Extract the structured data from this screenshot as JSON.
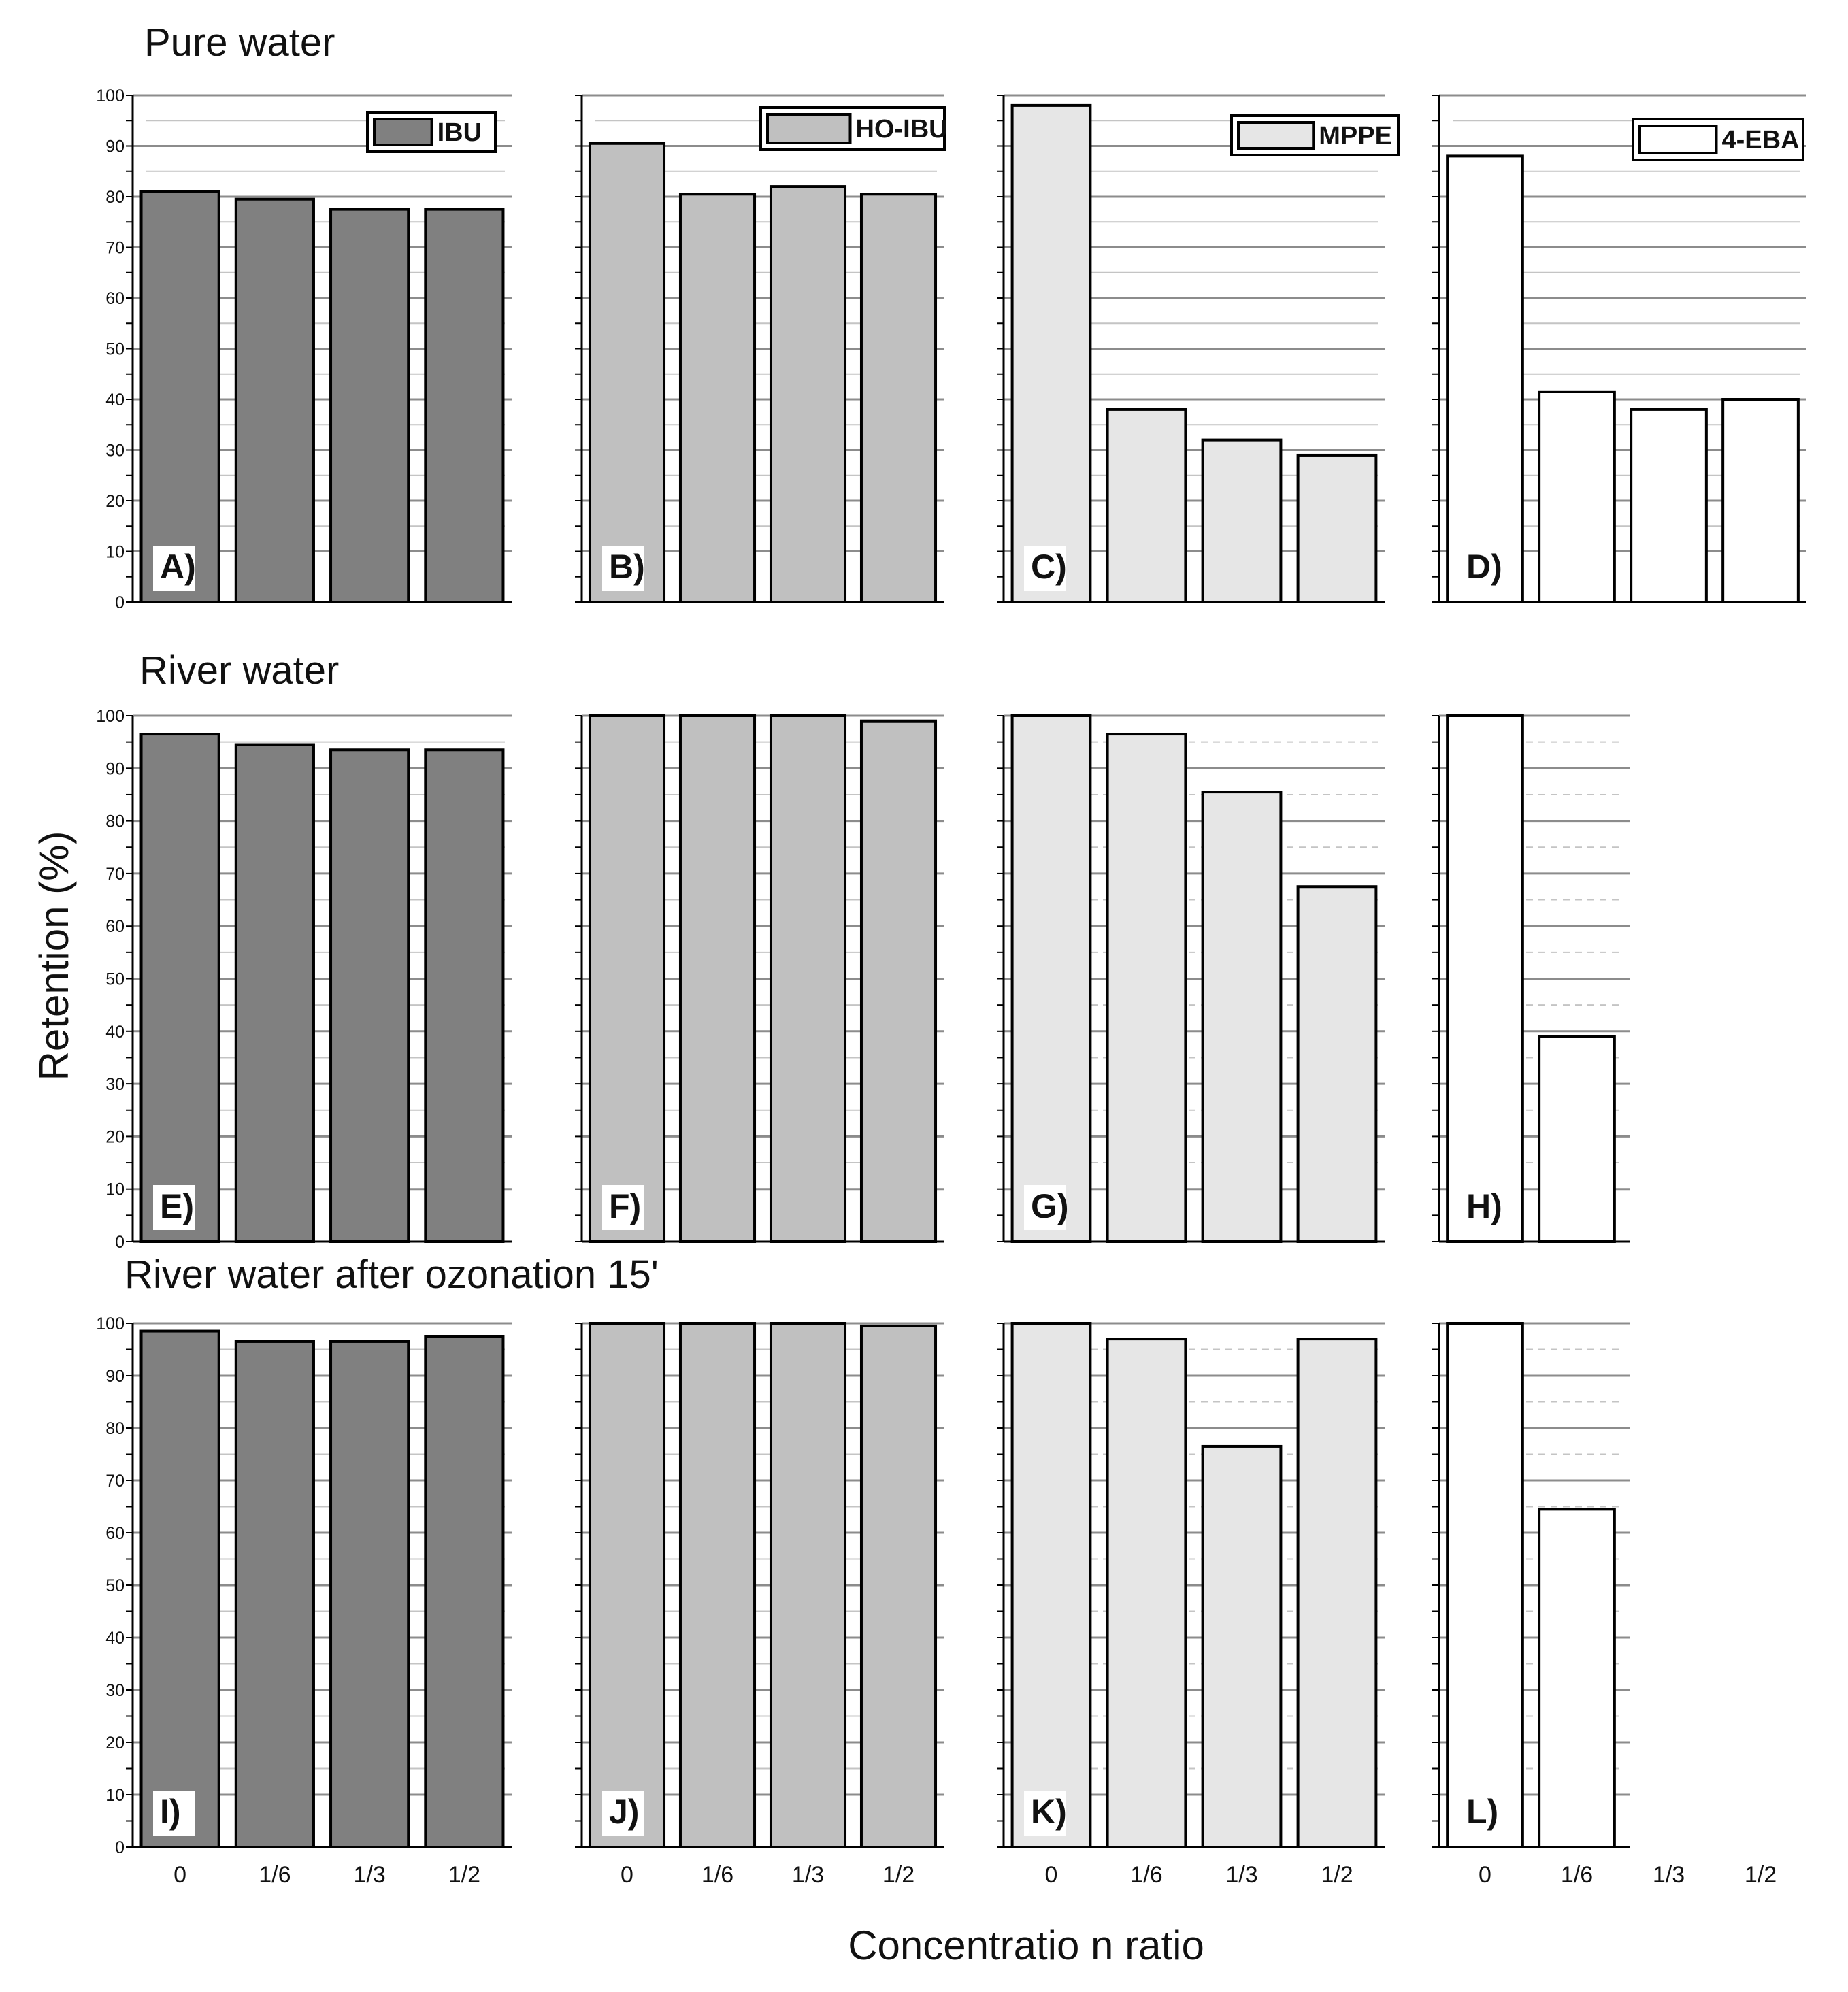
{
  "figure": {
    "y_axis_label": "Retention (%)",
    "x_axis_label": "Concentratio n ratio",
    "y_ticks": [
      "0",
      "10",
      "20",
      "30",
      "40",
      "50",
      "60",
      "70",
      "80",
      "90",
      "100"
    ],
    "categories": [
      "0",
      "1/6",
      "1/3",
      "1/2"
    ]
  },
  "rows": [
    {
      "title": "Pure water"
    },
    {
      "title": "River water"
    },
    {
      "title": "River water after ozonation 15'"
    }
  ],
  "legend": [
    {
      "name": "IBU",
      "color": "#808080"
    },
    {
      "name": "HO-IBU",
      "color": "#c0c0c0"
    },
    {
      "name": "MPPE",
      "color": "#e6e6e6"
    },
    {
      "name": "4-EBA",
      "color": "#ffffff"
    }
  ],
  "chart_data": [
    {
      "type": "bar",
      "panel": "A)",
      "series": "IBU",
      "matrix": "Pure water",
      "categories": [
        "0",
        "1/6",
        "1/3",
        "1/2"
      ],
      "values": [
        81,
        79.5,
        77.5,
        77.5
      ],
      "ylim": [
        0,
        100
      ],
      "color": "#808080"
    },
    {
      "type": "bar",
      "panel": "B)",
      "series": "HO-IBU",
      "matrix": "Pure water",
      "categories": [
        "0",
        "1/6",
        "1/3",
        "1/2"
      ],
      "values": [
        90.5,
        80.5,
        82,
        80.5
      ],
      "ylim": [
        0,
        100
      ],
      "color": "#c0c0c0"
    },
    {
      "type": "bar",
      "panel": "C)",
      "series": "MPPE",
      "matrix": "Pure water",
      "categories": [
        "0",
        "1/6",
        "1/3",
        "1/2"
      ],
      "values": [
        98,
        38,
        32,
        29
      ],
      "ylim": [
        0,
        100
      ],
      "color": "#e6e6e6"
    },
    {
      "type": "bar",
      "panel": "D)",
      "series": "4-EBA",
      "matrix": "Pure water",
      "categories": [
        "0",
        "1/6",
        "1/3",
        "1/2"
      ],
      "values": [
        88,
        41.5,
        38,
        40
      ],
      "ylim": [
        0,
        100
      ],
      "color": "#ffffff"
    },
    {
      "type": "bar",
      "panel": "E)",
      "series": "IBU",
      "matrix": "River water",
      "categories": [
        "0",
        "1/6",
        "1/3",
        "1/2"
      ],
      "values": [
        96.5,
        94.5,
        93.5,
        93.5
      ],
      "ylim": [
        0,
        100
      ],
      "color": "#808080"
    },
    {
      "type": "bar",
      "panel": "F)",
      "series": "HO-IBU",
      "matrix": "River water",
      "categories": [
        "0",
        "1/6",
        "1/3",
        "1/2"
      ],
      "values": [
        100,
        100,
        100,
        99
      ],
      "ylim": [
        0,
        100
      ],
      "color": "#c0c0c0"
    },
    {
      "type": "bar",
      "panel": "G)",
      "series": "MPPE",
      "matrix": "River water",
      "categories": [
        "0",
        "1/6",
        "1/3",
        "1/2"
      ],
      "values": [
        100,
        96.5,
        85.5,
        67.5
      ],
      "ylim": [
        0,
        100
      ],
      "color": "#e6e6e6"
    },
    {
      "type": "bar",
      "panel": "H)",
      "series": "4-EBA",
      "matrix": "River water",
      "categories": [
        "0",
        "1/6"
      ],
      "values": [
        100,
        39
      ],
      "ylim": [
        0,
        100
      ],
      "color": "#ffffff"
    },
    {
      "type": "bar",
      "panel": "I)",
      "series": "IBU",
      "matrix": "River water after ozonation 15'",
      "categories": [
        "0",
        "1/6",
        "1/3",
        "1/2"
      ],
      "values": [
        98.5,
        96.5,
        96.5,
        97.5
      ],
      "ylim": [
        0,
        100
      ],
      "color": "#808080"
    },
    {
      "type": "bar",
      "panel": "J)",
      "series": "HO-IBU",
      "matrix": "River water after ozonation 15'",
      "categories": [
        "0",
        "1/6",
        "1/3",
        "1/2"
      ],
      "values": [
        100,
        100,
        100,
        99.5
      ],
      "ylim": [
        0,
        100
      ],
      "color": "#c0c0c0"
    },
    {
      "type": "bar",
      "panel": "K)",
      "series": "MPPE",
      "matrix": "River water after ozonation 15'",
      "categories": [
        "0",
        "1/6",
        "1/3",
        "1/2"
      ],
      "values": [
        100,
        97,
        76.5,
        97
      ],
      "ylim": [
        0,
        100
      ],
      "color": "#e6e6e6"
    },
    {
      "type": "bar",
      "panel": "L)",
      "series": "4-EBA",
      "matrix": "River water after ozonation 15'",
      "categories": [
        "0",
        "1/6"
      ],
      "values": [
        100,
        64.5
      ],
      "ylim": [
        0,
        100
      ],
      "color": "#ffffff"
    }
  ]
}
